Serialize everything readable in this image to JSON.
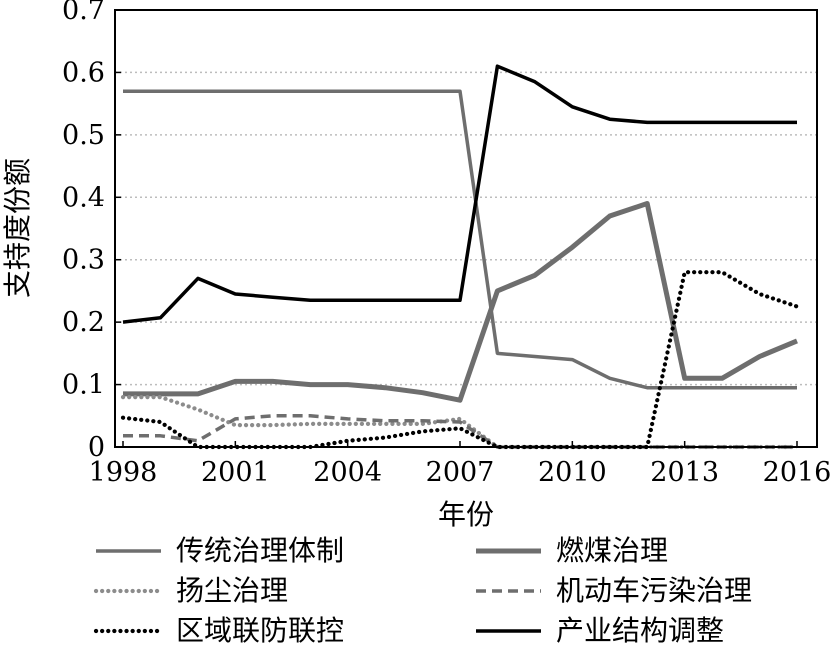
{
  "chart_data": {
    "type": "line",
    "title": "",
    "xlabel": "年份",
    "ylabel": "支持度份额",
    "xlim": [
      1998,
      2016
    ],
    "ylim": [
      0,
      0.7
    ],
    "x_ticks": [
      1998,
      2001,
      2004,
      2007,
      2010,
      2013,
      2016
    ],
    "y_ticks": [
      0,
      0.1,
      0.2,
      0.3,
      0.4,
      0.5,
      0.6,
      0.7
    ],
    "x_tick_labels": [
      "1998",
      "2001",
      "2004",
      "2007",
      "2010",
      "2013",
      "2016"
    ],
    "y_tick_labels": [
      "0",
      "0.1",
      "0.2",
      "0.3",
      "0.4",
      "0.5",
      "0.6",
      "0.7"
    ],
    "grid": "horizontal dotted",
    "legend_position": "bottom",
    "x": [
      1998,
      1999,
      2000,
      2001,
      2002,
      2003,
      2004,
      2005,
      2006,
      2007,
      2008,
      2009,
      2010,
      2011,
      2012,
      2013,
      2014,
      2015,
      2016
    ],
    "series": [
      {
        "name": "传统治理体制",
        "color": "#6e6e6e",
        "dash": "solid",
        "width": "medium",
        "values": [
          0.57,
          0.57,
          0.57,
          0.57,
          0.57,
          0.57,
          0.57,
          0.57,
          0.57,
          0.57,
          0.15,
          0.145,
          0.14,
          0.11,
          0.095,
          0.095,
          0.095,
          0.095,
          0.095
        ]
      },
      {
        "name": "燃煤治理",
        "color": "#6e6e6e",
        "dash": "solid",
        "width": "thick",
        "values": [
          0.085,
          0.085,
          0.085,
          0.105,
          0.105,
          0.1,
          0.1,
          0.095,
          0.087,
          0.075,
          0.25,
          0.275,
          0.32,
          0.37,
          0.39,
          0.11,
          0.11,
          0.145,
          0.17
        ]
      },
      {
        "name": "扬尘治理",
        "color": "#8c8c8c",
        "dash": "dotted",
        "width": "medium",
        "values": [
          0.08,
          0.08,
          0.06,
          0.035,
          0.035,
          0.037,
          0.037,
          0.037,
          0.037,
          0.045,
          0.0,
          0.0,
          0.0,
          0.0,
          0.0,
          0.0,
          0.0,
          0.0,
          0.0
        ]
      },
      {
        "name": "机动车污染治理",
        "color": "#6e6e6e",
        "dash": "dashed",
        "width": "medium",
        "values": [
          0.018,
          0.018,
          0.01,
          0.045,
          0.05,
          0.05,
          0.045,
          0.042,
          0.042,
          0.04,
          0.0,
          0.0,
          0.0,
          0.0,
          0.0,
          0.0,
          0.0,
          0.0,
          0.0
        ]
      },
      {
        "name": "区域联防联控",
        "color": "#000000",
        "dash": "dotted",
        "width": "medium",
        "values": [
          0.047,
          0.04,
          0.0,
          0.0,
          0.0,
          0.0,
          0.01,
          0.015,
          0.025,
          0.03,
          0.0,
          0.0,
          0.0,
          0.0,
          0.0,
          0.28,
          0.28,
          0.245,
          0.225
        ]
      },
      {
        "name": "产业结构调整",
        "color": "#000000",
        "dash": "solid",
        "width": "medium",
        "values": [
          0.2,
          0.207,
          0.27,
          0.245,
          0.24,
          0.235,
          0.235,
          0.235,
          0.235,
          0.235,
          0.61,
          0.585,
          0.545,
          0.525,
          0.52,
          0.52,
          0.52,
          0.52,
          0.52
        ]
      }
    ]
  }
}
